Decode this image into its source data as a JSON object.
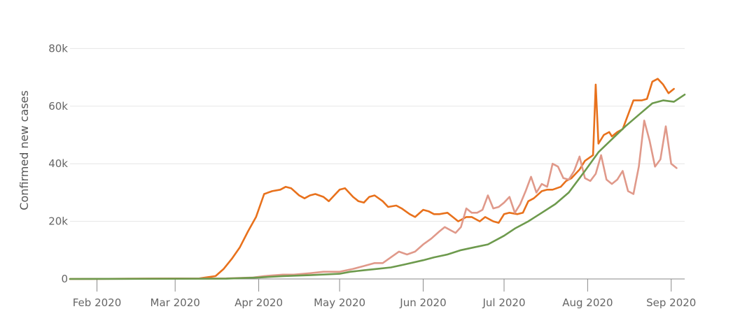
{
  "chart_data": {
    "type": "line",
    "ylabel": "Confirmed new cases",
    "xlabel": "",
    "title": "",
    "grid": true,
    "legend": "none",
    "xlim": [
      "2020-01-22",
      "2020-09-06"
    ],
    "ylim": [
      0,
      92000
    ],
    "x_tick_labels": [
      "Feb 2020",
      "Mar 2020",
      "Apr 2020",
      "May 2020",
      "Jun 2020",
      "Jul 2020",
      "Aug 2020",
      "Sep 2020"
    ],
    "x_ticks": [
      "2020-02-01",
      "2020-03-01",
      "2020-04-01",
      "2020-05-01",
      "2020-06-01",
      "2020-07-01",
      "2020-08-01",
      "2020-09-01"
    ],
    "y_ticks": [
      0,
      20000,
      40000,
      60000,
      80000
    ],
    "y_tick_labels": [
      "0",
      "20k",
      "40k",
      "60k",
      "80k"
    ],
    "series": [
      {
        "color": "#e8711c",
        "points": [
          [
            "2020-01-22",
            0
          ],
          [
            "2020-03-10",
            200
          ],
          [
            "2020-03-16",
            1000
          ],
          [
            "2020-03-19",
            3500
          ],
          [
            "2020-03-22",
            7000
          ],
          [
            "2020-03-25",
            11000
          ],
          [
            "2020-03-28",
            16500
          ],
          [
            "2020-03-31",
            21500
          ],
          [
            "2020-04-03",
            29500
          ],
          [
            "2020-04-06",
            30500
          ],
          [
            "2020-04-09",
            31000
          ],
          [
            "2020-04-11",
            32000
          ],
          [
            "2020-04-13",
            31500
          ],
          [
            "2020-04-16",
            29000
          ],
          [
            "2020-04-18",
            28000
          ],
          [
            "2020-04-20",
            29000
          ],
          [
            "2020-04-22",
            29500
          ],
          [
            "2020-04-25",
            28500
          ],
          [
            "2020-04-27",
            27000
          ],
          [
            "2020-04-29",
            29000
          ],
          [
            "2020-05-01",
            31000
          ],
          [
            "2020-05-03",
            31500
          ],
          [
            "2020-05-06",
            28500
          ],
          [
            "2020-05-08",
            27000
          ],
          [
            "2020-05-10",
            26500
          ],
          [
            "2020-05-12",
            28500
          ],
          [
            "2020-05-14",
            29000
          ],
          [
            "2020-05-17",
            27000
          ],
          [
            "2020-05-19",
            25000
          ],
          [
            "2020-05-22",
            25500
          ],
          [
            "2020-05-24",
            24500
          ],
          [
            "2020-05-27",
            22500
          ],
          [
            "2020-05-29",
            21500
          ],
          [
            "2020-06-01",
            24000
          ],
          [
            "2020-06-03",
            23500
          ],
          [
            "2020-06-05",
            22500
          ],
          [
            "2020-06-07",
            22500
          ],
          [
            "2020-06-10",
            23000
          ],
          [
            "2020-06-12",
            21500
          ],
          [
            "2020-06-14",
            20000
          ],
          [
            "2020-06-17",
            21500
          ],
          [
            "2020-06-19",
            21500
          ],
          [
            "2020-06-22",
            20000
          ],
          [
            "2020-06-24",
            21500
          ],
          [
            "2020-06-27",
            20000
          ],
          [
            "2020-06-29",
            19500
          ],
          [
            "2020-07-01",
            22500
          ],
          [
            "2020-07-03",
            23000
          ],
          [
            "2020-07-06",
            22500
          ],
          [
            "2020-07-08",
            23000
          ],
          [
            "2020-07-10",
            27000
          ],
          [
            "2020-07-12",
            28000
          ],
          [
            "2020-07-15",
            30500
          ],
          [
            "2020-07-17",
            31000
          ],
          [
            "2020-07-19",
            31000
          ],
          [
            "2020-07-22",
            32000
          ],
          [
            "2020-07-24",
            34000
          ],
          [
            "2020-07-26",
            35000
          ],
          [
            "2020-07-29",
            38000
          ],
          [
            "2020-07-31",
            41000
          ],
          [
            "2020-08-03",
            43000
          ],
          [
            "2020-08-05",
            47000
          ],
          [
            "2020-08-07",
            50000
          ],
          [
            "2020-08-09",
            51000
          ],
          [
            "2020-08-10",
            49500
          ],
          [
            "2020-08-12",
            51000
          ],
          [
            "2020-08-14",
            52000
          ],
          [
            "2020-08-16",
            57000
          ],
          [
            "2020-08-18",
            62000
          ],
          [
            "2020-08-21",
            62000
          ],
          [
            "2020-08-23",
            62500
          ],
          [
            "2020-08-25",
            68500
          ],
          [
            "2020-08-27",
            69500
          ],
          [
            "2020-08-29",
            67500
          ],
          [
            "2020-08-31",
            64500
          ],
          [
            "2020-09-02",
            66000
          ],
          [
            "2020-08-04",
            67500
          ]
        ]
      },
      {
        "color": "#e0998a",
        "points": [
          [
            "2020-01-22",
            0
          ],
          [
            "2020-03-20",
            200
          ],
          [
            "2020-03-30",
            500
          ],
          [
            "2020-04-03",
            1000
          ],
          [
            "2020-04-10",
            1500
          ],
          [
            "2020-04-14",
            1500
          ],
          [
            "2020-04-20",
            2000
          ],
          [
            "2020-04-25",
            2500
          ],
          [
            "2020-05-01",
            2500
          ],
          [
            "2020-05-06",
            3500
          ],
          [
            "2020-05-10",
            4500
          ],
          [
            "2020-05-14",
            5500
          ],
          [
            "2020-05-17",
            5500
          ],
          [
            "2020-05-20",
            7500
          ],
          [
            "2020-05-23",
            9500
          ],
          [
            "2020-05-26",
            8500
          ],
          [
            "2020-05-29",
            9500
          ],
          [
            "2020-06-01",
            12000
          ],
          [
            "2020-06-04",
            14000
          ],
          [
            "2020-06-07",
            16500
          ],
          [
            "2020-06-09",
            18000
          ],
          [
            "2020-06-11",
            17000
          ],
          [
            "2020-06-13",
            16000
          ],
          [
            "2020-06-15",
            18000
          ],
          [
            "2020-06-17",
            24500
          ],
          [
            "2020-06-19",
            23000
          ],
          [
            "2020-06-21",
            23000
          ],
          [
            "2020-06-23",
            24000
          ],
          [
            "2020-06-25",
            29000
          ],
          [
            "2020-06-27",
            24500
          ],
          [
            "2020-06-29",
            25000
          ],
          [
            "2020-07-01",
            26500
          ],
          [
            "2020-07-03",
            28500
          ],
          [
            "2020-07-05",
            23000
          ],
          [
            "2020-07-07",
            26000
          ],
          [
            "2020-07-09",
            30500
          ],
          [
            "2020-07-11",
            35500
          ],
          [
            "2020-07-13",
            30000
          ],
          [
            "2020-07-15",
            33000
          ],
          [
            "2020-07-17",
            32000
          ],
          [
            "2020-07-19",
            40000
          ],
          [
            "2020-07-21",
            39000
          ],
          [
            "2020-07-23",
            35000
          ],
          [
            "2020-07-25",
            34500
          ],
          [
            "2020-07-27",
            37500
          ],
          [
            "2020-07-29",
            42500
          ],
          [
            "2020-07-31",
            35000
          ],
          [
            "2020-08-02",
            34000
          ],
          [
            "2020-08-04",
            36500
          ],
          [
            "2020-08-06",
            43000
          ],
          [
            "2020-08-08",
            34500
          ],
          [
            "2020-08-10",
            33000
          ],
          [
            "2020-08-12",
            34500
          ],
          [
            "2020-08-14",
            37500
          ],
          [
            "2020-08-16",
            30500
          ],
          [
            "2020-08-18",
            29500
          ],
          [
            "2020-08-20",
            39000
          ],
          [
            "2020-08-22",
            55000
          ],
          [
            "2020-08-24",
            48000
          ],
          [
            "2020-08-26",
            39000
          ],
          [
            "2020-08-28",
            41500
          ],
          [
            "2020-08-30",
            53000
          ],
          [
            "2020-09-01",
            40000
          ],
          [
            "2020-09-03",
            38500
          ]
        ]
      },
      {
        "color": "#6d9a4d",
        "points": [
          [
            "2020-01-22",
            0
          ],
          [
            "2020-03-20",
            100
          ],
          [
            "2020-04-01",
            500
          ],
          [
            "2020-04-10",
            1000
          ],
          [
            "2020-04-20",
            1300
          ],
          [
            "2020-05-01",
            1800
          ],
          [
            "2020-05-05",
            2500
          ],
          [
            "2020-05-10",
            3000
          ],
          [
            "2020-05-15",
            3500
          ],
          [
            "2020-05-20",
            4000
          ],
          [
            "2020-05-25",
            5000
          ],
          [
            "2020-06-01",
            6500
          ],
          [
            "2020-06-05",
            7500
          ],
          [
            "2020-06-10",
            8500
          ],
          [
            "2020-06-15",
            10000
          ],
          [
            "2020-06-20",
            11000
          ],
          [
            "2020-06-25",
            12000
          ],
          [
            "2020-07-01",
            15000
          ],
          [
            "2020-07-05",
            17500
          ],
          [
            "2020-07-10",
            20000
          ],
          [
            "2020-07-15",
            23000
          ],
          [
            "2020-07-20",
            26000
          ],
          [
            "2020-07-25",
            30000
          ],
          [
            "2020-07-31",
            37500
          ],
          [
            "2020-08-05",
            44000
          ],
          [
            "2020-08-10",
            48500
          ],
          [
            "2020-08-15",
            53000
          ],
          [
            "2020-08-20",
            57000
          ],
          [
            "2020-08-25",
            61000
          ],
          [
            "2020-08-29",
            62000
          ],
          [
            "2020-09-02",
            61500
          ],
          [
            "2020-09-06",
            64000
          ]
        ]
      }
    ]
  }
}
